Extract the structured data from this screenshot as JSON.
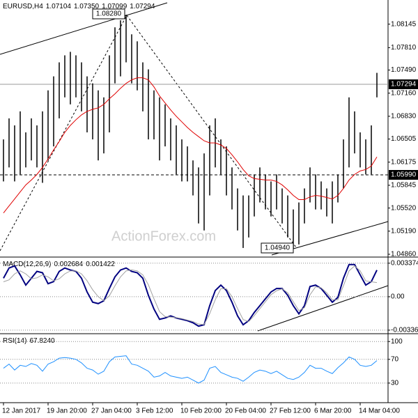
{
  "chart_data": [
    {
      "type": "ohlc",
      "title": "EURUSD,H4",
      "header_values": [
        "1.07104",
        "1.07350",
        "1.07099",
        "1.07294"
      ],
      "categories": [
        "12 Jan 2017",
        null,
        null,
        null,
        null,
        null,
        null,
        null,
        "19 Jan 20:00",
        null,
        null,
        null,
        null,
        null,
        null,
        null,
        "27 Jan 04:00",
        null,
        null,
        null,
        null,
        null,
        null,
        null,
        "3 Feb 12:00",
        null,
        null,
        null,
        null,
        null,
        null,
        null,
        "10 Feb 20:00",
        null,
        null,
        null,
        null,
        null,
        null,
        null,
        "20 Feb 04:00",
        null,
        null,
        null,
        null,
        null,
        null,
        null,
        "27 Feb 12:00",
        null,
        null,
        null,
        null,
        null,
        null,
        null,
        "6 Mar 20:00",
        null,
        null,
        null,
        null,
        null,
        null,
        null,
        "14 Mar 04:00",
        null,
        null,
        null
      ],
      "high": [
        1.065,
        1.068,
        1.067,
        1.069,
        1.066,
        1.068,
        1.067,
        1.069,
        1.072,
        1.074,
        1.076,
        1.077,
        1.0775,
        1.077,
        1.076,
        1.074,
        1.073,
        1.072,
        1.071,
        1.077,
        1.081,
        1.082,
        1.0828,
        1.08,
        1.079,
        1.076,
        1.075,
        1.072,
        1.071,
        1.07,
        1.068,
        1.067,
        1.065,
        1.064,
        1.062,
        1.061,
        1.063,
        1.067,
        1.068,
        1.065,
        1.064,
        1.061,
        1.058,
        1.057,
        1.057,
        1.06,
        1.061,
        1.06,
        1.059,
        1.06,
        1.058,
        1.057,
        1.055,
        1.056,
        1.058,
        1.061,
        1.06,
        1.059,
        1.058,
        1.059,
        1.06,
        1.065,
        1.071,
        1.069,
        1.066,
        1.065,
        1.067,
        1.0745
      ],
      "low": [
        1.059,
        1.061,
        1.059,
        1.06,
        1.061,
        1.062,
        1.061,
        1.0588,
        1.062,
        1.064,
        1.068,
        1.071,
        1.07,
        1.071,
        1.069,
        1.066,
        1.065,
        1.062,
        1.063,
        1.066,
        1.073,
        1.074,
        1.076,
        1.073,
        1.072,
        1.069,
        1.065,
        1.065,
        1.062,
        1.064,
        1.062,
        1.06,
        1.059,
        1.059,
        1.057,
        1.053,
        1.052,
        1.057,
        1.061,
        1.06,
        1.057,
        1.055,
        1.052,
        1.0495,
        1.051,
        1.054,
        1.056,
        1.055,
        1.054,
        1.055,
        1.053,
        1.051,
        1.0494,
        1.05,
        1.053,
        1.056,
        1.055,
        1.055,
        1.054,
        1.053,
        1.056,
        1.058,
        1.061,
        1.063,
        1.061,
        1.06,
        1.06,
        1.071
      ],
      "color": "#000000",
      "overlay": {
        "type": "line",
        "color": "#e00000",
        "values": [
          1.0545,
          1.0555,
          1.0565,
          1.0575,
          1.0585,
          1.0592,
          1.06,
          1.061,
          1.0622,
          1.0635,
          1.0647,
          1.066,
          1.067,
          1.0678,
          1.0685,
          1.069,
          1.0693,
          1.0695,
          1.07,
          1.0708,
          1.0715,
          1.0723,
          1.073,
          1.0735,
          1.0738,
          1.0738,
          1.0735,
          1.0725,
          1.0712,
          1.0702,
          1.0692,
          1.0683,
          1.0675,
          1.0667,
          1.066,
          1.0654,
          1.0648,
          1.0645,
          1.0645,
          1.0642,
          1.0637,
          1.0628,
          1.0618,
          1.0607,
          1.0598,
          1.0594,
          1.0593,
          1.0592,
          1.0592,
          1.059,
          1.0585,
          1.0578,
          1.057,
          1.0564,
          1.0564,
          1.0568,
          1.057,
          1.0569,
          1.0567,
          1.0565,
          1.057,
          1.058,
          1.0592,
          1.06,
          1.0605,
          1.0607,
          1.0612,
          1.0625
        ]
      },
      "ylim": [
        1.0483,
        1.0849
      ],
      "yticks": [
        1.08145,
        {
          "value": 1.0781,
          "label": "1.07810"
        },
        {
          "value": 1.0749,
          "label": "1.07490"
        },
        {
          "value": 1.0716,
          "label": "1.07160"
        },
        {
          "value": 1.0683,
          "label": "1.06830"
        },
        1.06505,
        1.06175,
        1.05845,
        {
          "value": 1.0552,
          "label": "1.05520"
        },
        {
          "value": 1.0519,
          "label": "1.05190"
        },
        {
          "value": 1.0486,
          "label": "1.04860"
        }
      ],
      "grid": false,
      "annotations": [
        "1.08280",
        "1.04940",
        "1.07294",
        "1.05990",
        "ActionForex.com"
      ]
    },
    {
      "type": "line",
      "title": "MACD(12,26,9)",
      "header_values": [
        "0.002684",
        "0.001422"
      ],
      "series": [
        {
          "color": "#000080",
          "values": [
            0.00186,
            0.00289,
            0.0031,
            0.0022,
            0.00117,
            0.00186,
            0.00255,
            0.00241,
            0.00131,
            0.00152,
            0.00255,
            0.00289,
            0.00269,
            0.00255,
            0.00186,
            0.00048,
            -0.00055,
            -0.00069,
            -0.00041,
            0.00083,
            0.002,
            0.00269,
            0.00289,
            0.00255,
            0.00241,
            0.00186,
            0.00014,
            -0.00124,
            -0.00227,
            -0.00214,
            -0.00193,
            -0.00214,
            -0.00227,
            -0.00241,
            -0.00262,
            -0.00296,
            -0.00282,
            -0.0009,
            0.00062,
            0.00117,
            0.00062,
            -0.00055,
            -0.00193,
            -0.00282,
            -0.00241,
            -0.00158,
            -0.0009,
            -0.00021,
            0.00048,
            0.00083,
            0.00083,
            0.00014,
            -0.0009,
            -0.00172,
            -0.0009,
            0.00103,
            0.00117,
            0.00083,
            0.00014,
            -0.00055,
            -7e-05,
            0.00186,
            0.00324,
            0.00324,
            0.0022,
            0.00117,
            0.00152,
            0.00268
          ]
        },
        {
          "color": "#a0a0a0",
          "values": [
            0.0015,
            0.0017,
            0.0023,
            0.0026,
            0.0023,
            0.0018,
            0.0019,
            0.0022,
            0.002,
            0.0016,
            0.0018,
            0.0023,
            0.0026,
            0.0026,
            0.0023,
            0.0016,
            0.0007,
            0.0,
            -0.0004,
            0.0001,
            0.0011,
            0.002,
            0.0026,
            0.0027,
            0.0026,
            0.0022,
            0.0012,
            -0.0002,
            -0.0015,
            -0.002,
            -0.00205,
            -0.0021,
            -0.0022,
            -0.00235,
            -0.0025,
            -0.00275,
            -0.0028,
            -0.0017,
            -0.0003,
            0.0008,
            0.0008,
            0.0,
            -0.0012,
            -0.0023,
            -0.0025,
            -0.0019,
            -0.0012,
            -0.0005,
            0.0002,
            0.0006,
            0.0008,
            0.0004,
            -0.0005,
            -0.0014,
            -0.0011,
            0.0002,
            0.001,
            0.0009,
            0.0004,
            -0.0003,
            -0.0003,
            0.0011,
            0.0026,
            0.0031,
            0.0026,
            0.0016,
            0.0015,
            0.00142
          ]
        }
      ],
      "ylim": [
        -0.00365,
        0.00392
      ],
      "yticks": [
        0.003374,
        {
          "value": 0,
          "label": "0.00"
        },
        -0.003363
      ],
      "grid": true
    },
    {
      "type": "line",
      "title": "RSI(14)",
      "header_values": [
        "67.8240"
      ],
      "series": [
        {
          "color": "#1e90ff",
          "values": [
            55,
            62,
            52,
            60,
            58,
            63,
            60,
            50,
            62,
            66,
            72,
            73,
            72,
            70,
            64,
            55,
            52,
            45,
            50,
            66,
            74,
            75,
            76,
            62,
            60,
            55,
            50,
            40,
            42,
            48,
            42,
            40,
            38,
            40,
            35,
            30,
            35,
            55,
            58,
            48,
            44,
            40,
            38,
            33,
            40,
            48,
            52,
            50,
            46,
            50,
            44,
            38,
            36,
            40,
            48,
            60,
            55,
            55,
            50,
            46,
            56,
            64,
            74,
            70,
            60,
            58,
            60,
            67.8
          ]
        }
      ],
      "ylim": [
        -3,
        112
      ],
      "yticks": [
        100,
        70,
        30
      ],
      "grid": true
    }
  ]
}
